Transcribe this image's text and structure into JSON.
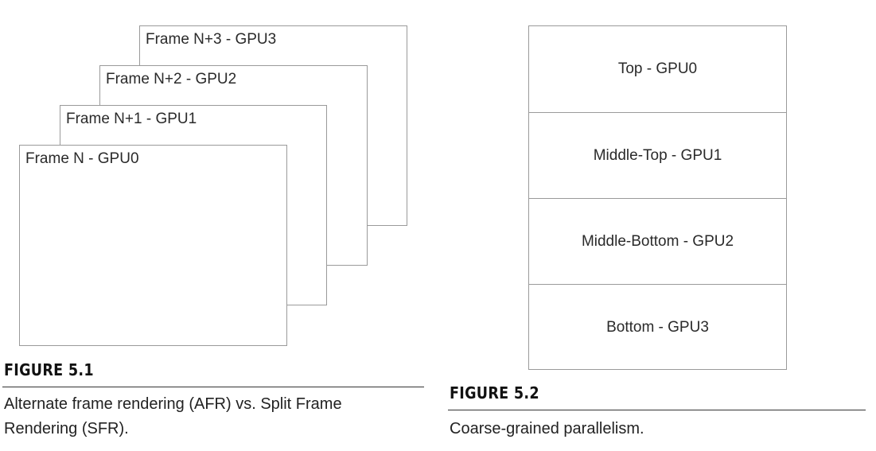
{
  "afr_diagram": {
    "frames": [
      {
        "label": "Frame N+3 - GPU3"
      },
      {
        "label": "Frame N+2 - GPU2"
      },
      {
        "label": "Frame N+1 - GPU1"
      },
      {
        "label": "Frame N - GPU0"
      }
    ]
  },
  "sfr_diagram": {
    "bands": [
      {
        "label": "Top - GPU0"
      },
      {
        "label": "Middle-Top - GPU1"
      },
      {
        "label": "Middle-Bottom - GPU2"
      },
      {
        "label": "Bottom - GPU3"
      }
    ]
  },
  "figure_1": {
    "title": "FIGURE 5.1",
    "caption": "Alternate frame rendering (AFR) vs. Split Frame Rendering (SFR)."
  },
  "figure_2": {
    "title": "FIGURE 5.2",
    "caption": "Coarse-grained parallelism."
  },
  "colors": {
    "border": "#9a9a9a",
    "text": "#222222",
    "rule": "#333333"
  }
}
